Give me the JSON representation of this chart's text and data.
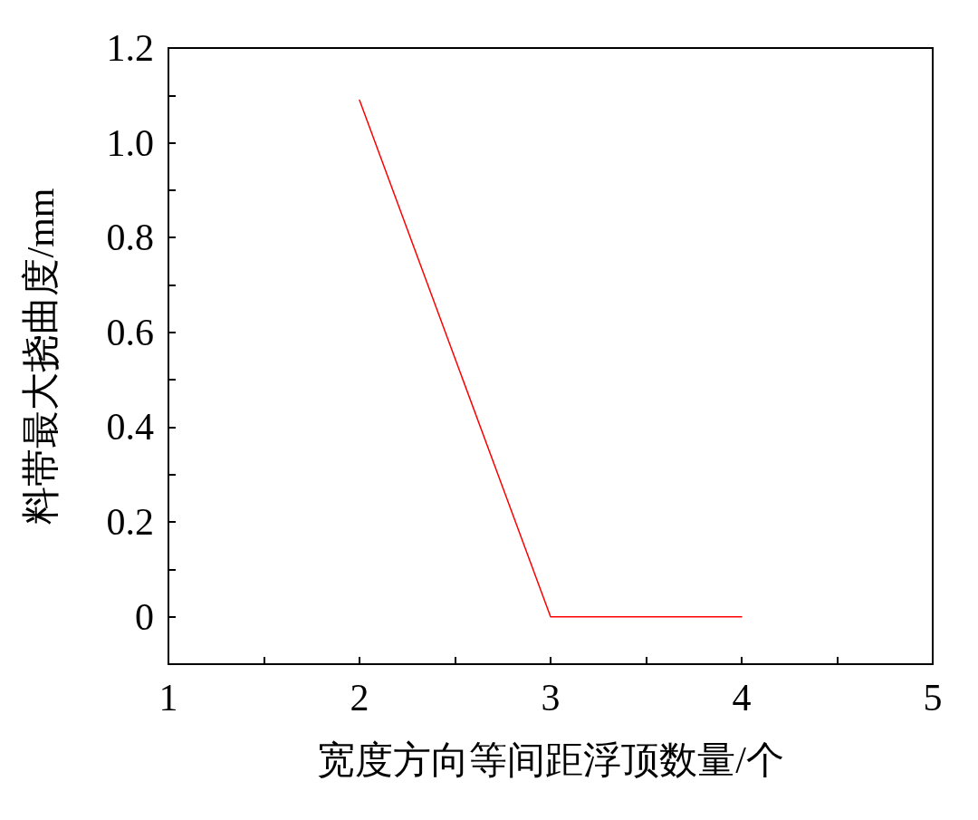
{
  "chart_data": {
    "type": "line",
    "xlabel": "宽度方向等间距浮顶数量/个",
    "ylabel": "料带最大挠曲度/mm",
    "x": [
      2,
      3,
      4
    ],
    "series": [
      {
        "color": "#ff0000",
        "values": [
          1.09,
          0.0,
          0.0
        ]
      }
    ],
    "xlim": [
      1,
      5
    ],
    "xticks": [
      1,
      {
        "value": 1.5,
        "label": null
      },
      2,
      {
        "value": 2.5,
        "label": null
      },
      3,
      {
        "value": 3.5,
        "label": null
      },
      4,
      {
        "value": 4.5,
        "label": null
      },
      5
    ],
    "ylim": [
      -0.1,
      1.2
    ],
    "yticks": [
      0,
      {
        "value": 0.1,
        "label": null
      },
      {
        "value": 0.2,
        "label": "0.2"
      },
      {
        "value": 0.3,
        "label": null
      },
      {
        "value": 0.4,
        "label": "0.4"
      },
      {
        "value": 0.5,
        "label": null
      },
      {
        "value": 0.6,
        "label": "0.6"
      },
      {
        "value": 0.7,
        "label": null
      },
      {
        "value": 0.8,
        "label": "0.8"
      },
      {
        "value": 0.9,
        "label": null
      },
      {
        "value": 1,
        "label": "1.0"
      },
      {
        "value": 1.1,
        "label": null
      },
      {
        "value": 1.2,
        "label": "1.2"
      }
    ],
    "grid": false,
    "marker": "none",
    "line_style": "solid"
  }
}
